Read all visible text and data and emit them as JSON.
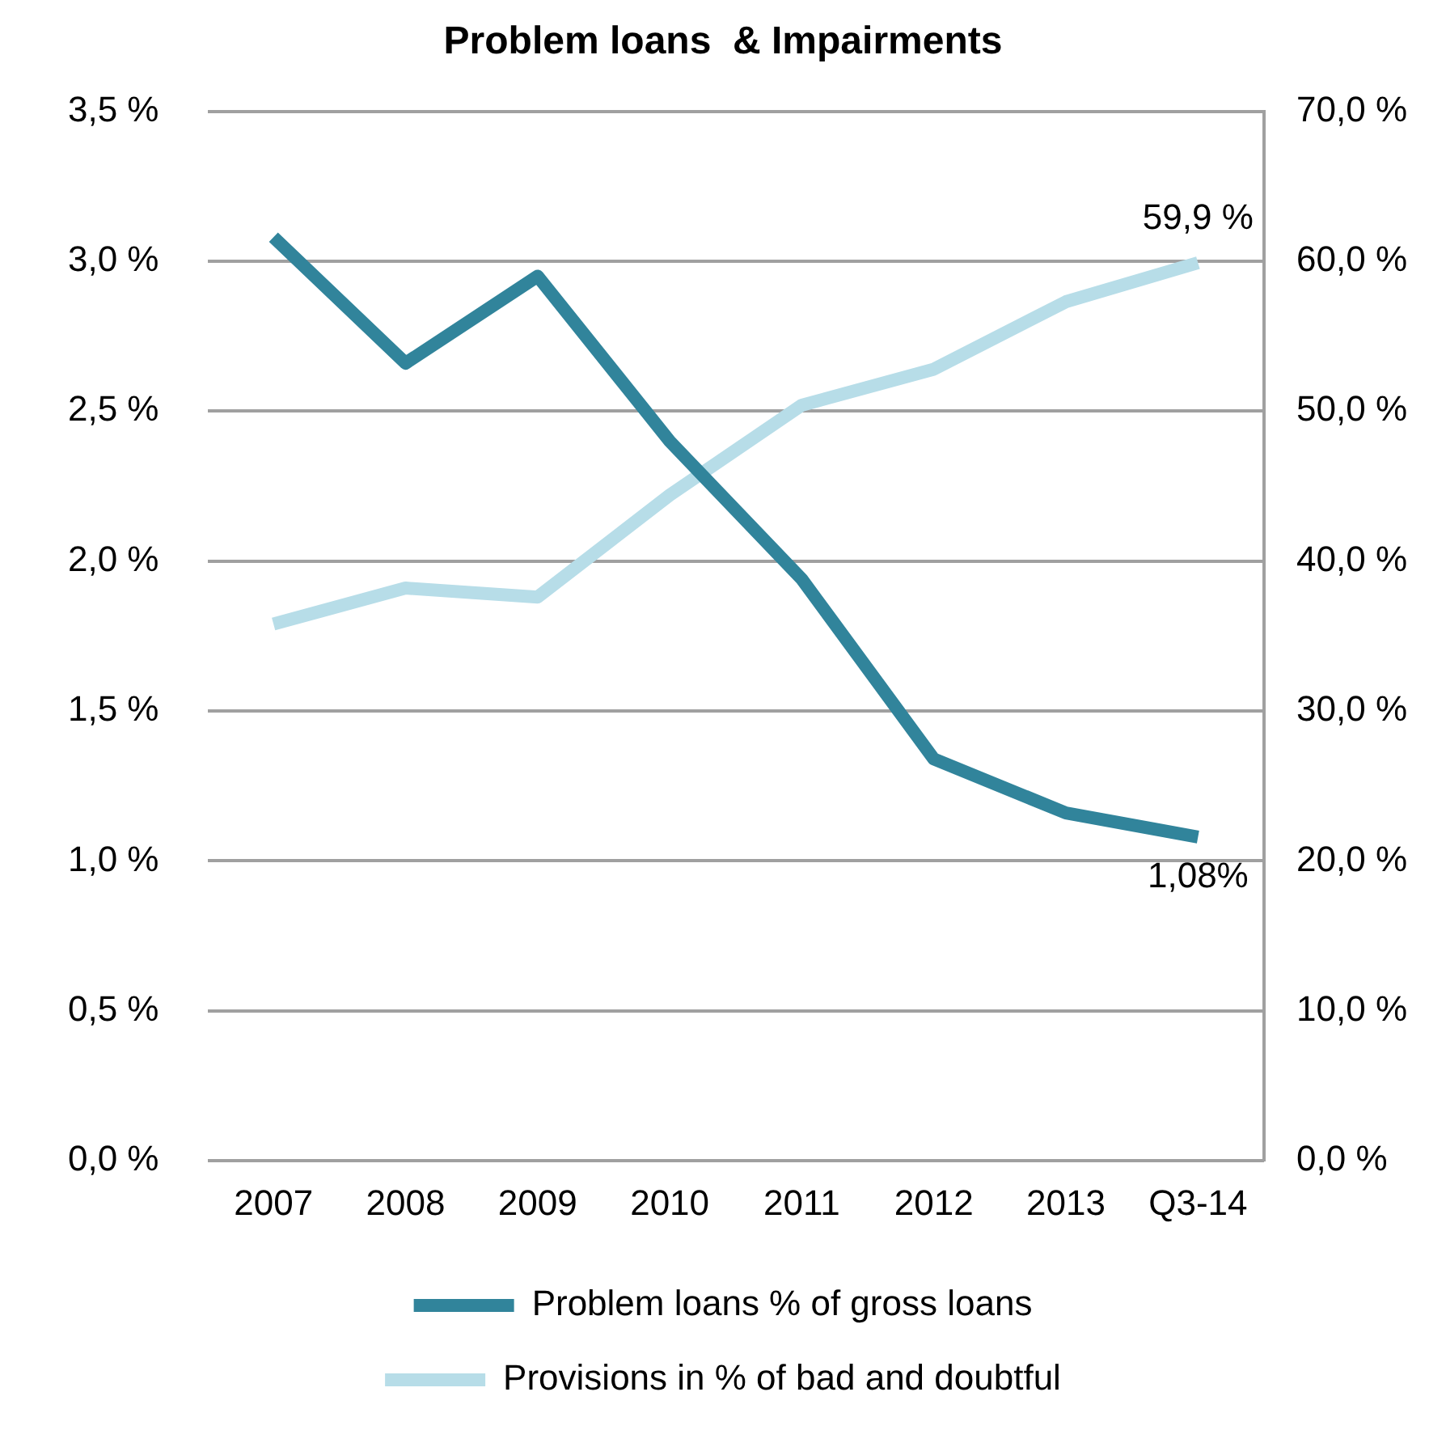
{
  "chart_data": {
    "type": "line",
    "title": "Problem loans  & Impairments",
    "categories": [
      "2007",
      "2008",
      "2009",
      "2010",
      "2011",
      "2012",
      "2013",
      "Q3-14"
    ],
    "series": [
      {
        "name": "Problem loans % of gross loans",
        "color": "#31849b",
        "values": [
          3.08,
          2.66,
          2.95,
          2.4,
          1.94,
          1.34,
          1.16,
          1.08
        ],
        "value_labels": [
          null,
          null,
          null,
          null,
          null,
          null,
          null,
          "1,08%"
        ]
      },
      {
        "name": "Provisions in % of bad and doubtful",
        "color": "#b7dde8",
        "axis": "y2",
        "values": [
          35.8,
          38.2,
          37.6,
          44.4,
          50.4,
          52.8,
          57.3,
          59.9
        ],
        "value_labels": [
          null,
          null,
          null,
          null,
          null,
          null,
          null,
          "59,9 %"
        ]
      }
    ],
    "ylim": [
      0,
      3.5
    ],
    "yticks": [
      {
        "value": 0,
        "label": "0,0 %"
      },
      {
        "value": 0.5,
        "label": "0,5 %"
      },
      {
        "value": 1,
        "label": "1,0 %"
      },
      {
        "value": 1.5,
        "label": "1,5 %"
      },
      {
        "value": 2,
        "label": "2,0 %"
      },
      {
        "value": 2.5,
        "label": "2,5 %"
      },
      {
        "value": 3,
        "label": "3,0 %"
      },
      {
        "value": 3.5,
        "label": "3,5 %"
      }
    ],
    "y2lim": [
      0,
      70
    ],
    "y2ticks": [
      {
        "value": 0,
        "label": "0,0 %"
      },
      {
        "value": 10,
        "label": "10,0 %"
      },
      {
        "value": 20,
        "label": "20,0 %"
      },
      {
        "value": 30,
        "label": "30,0 %"
      },
      {
        "value": 40,
        "label": "40,0 %"
      },
      {
        "value": 50,
        "label": "50,0 %"
      },
      {
        "value": 60,
        "label": "60,0 %"
      },
      {
        "value": 70,
        "label": "70,0 %"
      }
    ],
    "grid": "y",
    "legend": "bottom",
    "marker": "none",
    "line_style": "solid"
  }
}
